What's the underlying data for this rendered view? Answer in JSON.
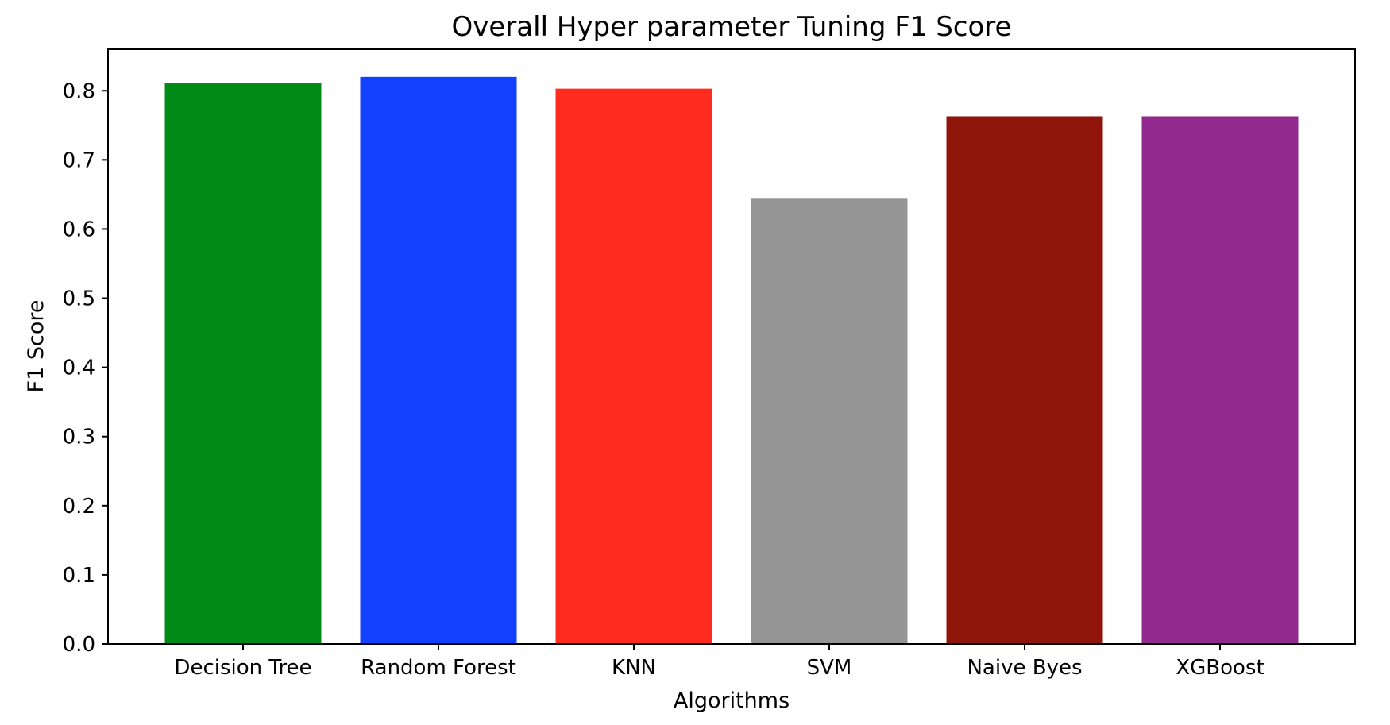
{
  "chart_data": {
    "type": "bar",
    "title": "Overall Hyper parameter Tuning F1 Score",
    "xlabel": "Algorithms",
    "ylabel": "F1 Score",
    "categories": [
      "Decision Tree",
      "Random Forest",
      "KNN",
      "SVM",
      "Naive Byes",
      "XGBoost"
    ],
    "values": [
      0.811,
      0.82,
      0.803,
      0.645,
      0.763,
      0.763
    ],
    "colors": [
      "#008b17",
      "#1140fe",
      "#ff2b1e",
      "#959595",
      "#8f140a",
      "#912a8f"
    ],
    "ylim": [
      0,
      0.86
    ],
    "yticks": [
      0.0,
      0.1,
      0.2,
      0.3,
      0.4,
      0.5,
      0.6,
      0.7,
      0.8
    ],
    "ytick_labels": [
      "0.0",
      "0.1",
      "0.2",
      "0.3",
      "0.4",
      "0.5",
      "0.6",
      "0.7",
      "0.8"
    ],
    "grid": false,
    "legend": "none"
  }
}
